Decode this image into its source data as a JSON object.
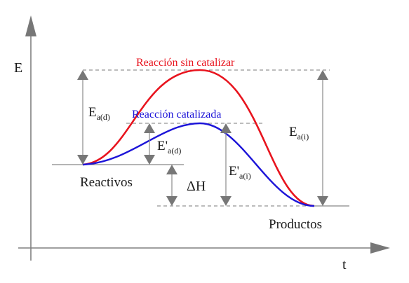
{
  "axes": {
    "y_label": "E",
    "x_label": "t"
  },
  "curves": {
    "uncatalyzed": {
      "label": "Reacción sin catalizar",
      "color": "#e8141e"
    },
    "catalyzed": {
      "label": "Reacción catalizada",
      "color": "#1c14d8"
    }
  },
  "levels": {
    "reactants": "Reactivos",
    "products": "Productos"
  },
  "annotations": {
    "ea_d": {
      "main": "E",
      "sub": "a(d)"
    },
    "ea_i": {
      "main": "E",
      "sub": "a(i)"
    },
    "ea_d_cat": {
      "main": "E'",
      "sub": "a(d)"
    },
    "ea_i_cat": {
      "main": "E'",
      "sub": "a(i)"
    },
    "delta_h": "ΔH"
  },
  "colors": {
    "axis": "#808080",
    "guide": "#7a7a7a",
    "arrow": "#777777"
  }
}
